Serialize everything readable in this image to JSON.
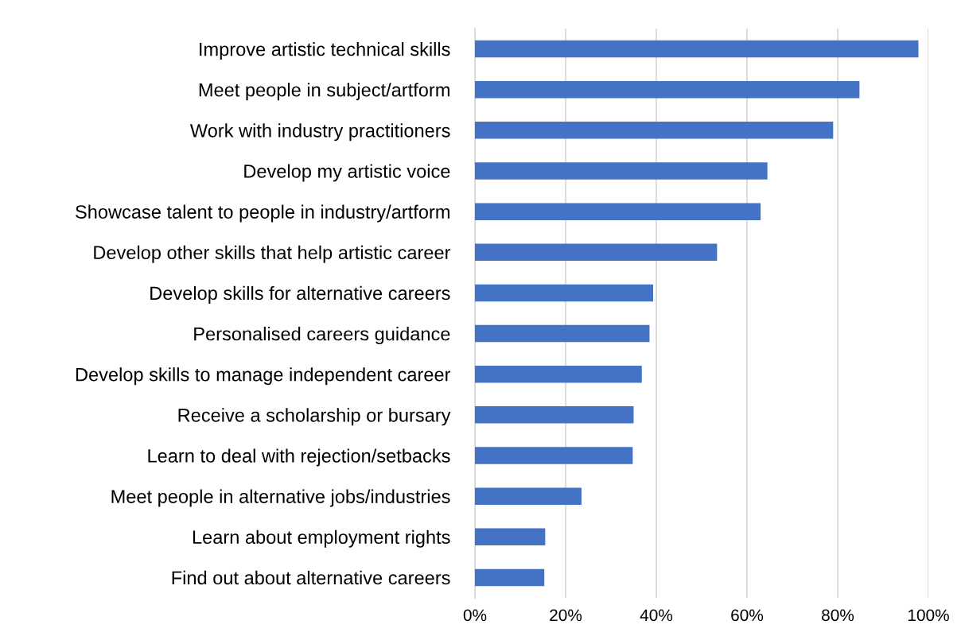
{
  "chart_data": {
    "type": "bar",
    "orientation": "horizontal",
    "categories": [
      "Improve artistic technical skills",
      "Meet people in subject/artform",
      "Work with industry practitioners",
      "Develop my artistic voice",
      "Showcase talent to people in industry/artform",
      "Develop other skills that help artistic career",
      "Develop skills for alternative careers",
      "Personalised careers guidance",
      "Develop skills to manage independent career",
      "Receive a scholarship or bursary",
      "Learn to deal with rejection/setbacks",
      "Meet people in alternative jobs/industries",
      "Learn about employment rights",
      "Find out about alternative careers"
    ],
    "values": [
      97.8,
      84.8,
      79.0,
      64.5,
      63.0,
      53.4,
      39.3,
      38.5,
      36.8,
      35.0,
      34.8,
      23.5,
      15.5,
      15.3
    ],
    "color": "#4472c4",
    "xlim": [
      0,
      100
    ],
    "xticks": [
      {
        "value": 0,
        "label": "0%"
      },
      {
        "value": 20,
        "label": "20%"
      },
      {
        "value": 40,
        "label": "40%"
      },
      {
        "value": 60,
        "label": "60%"
      },
      {
        "value": 80,
        "label": "80%"
      },
      {
        "value": 100,
        "label": "100%"
      }
    ],
    "grid": "x",
    "legend": false
  }
}
